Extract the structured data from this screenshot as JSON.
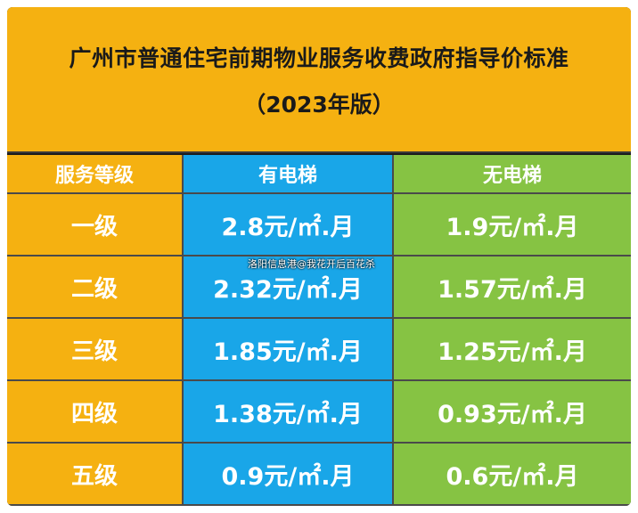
{
  "title": {
    "line1": "广州市普通住宅前期物业服务收费政府指导价标准",
    "line2": "（2023年版）"
  },
  "table": {
    "headers": [
      "服务等级",
      "有电梯",
      "无电梯"
    ],
    "rows": [
      {
        "level": "一级",
        "with_lift": "2.8元/㎡.月",
        "without_lift": "1.9元/㎡.月"
      },
      {
        "level": "二级",
        "with_lift": "2.32元/㎡.月",
        "without_lift": "1.57元/㎡.月"
      },
      {
        "level": "三级",
        "with_lift": "1.85元/㎡.月",
        "without_lift": "1.25元/㎡.月"
      },
      {
        "level": "四级",
        "with_lift": "1.38元/㎡.月",
        "without_lift": "0.93元/㎡.月"
      },
      {
        "level": "五级",
        "with_lift": "0.9元/㎡.月",
        "without_lift": "0.6元/㎡.月"
      }
    ]
  },
  "watermark": "洛阳信息港@我花开后百花杀",
  "colors": {
    "title_bg": "#f5b111",
    "level_bg": "#f5b111",
    "with_lift_bg": "#19a6e8",
    "without_lift_bg": "#86c343"
  }
}
